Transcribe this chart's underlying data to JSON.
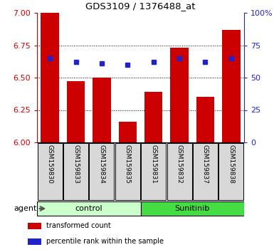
{
  "title": "GDS3109 / 1376488_at",
  "samples": [
    "GSM159830",
    "GSM159833",
    "GSM159834",
    "GSM159835",
    "GSM159831",
    "GSM159832",
    "GSM159837",
    "GSM159838"
  ],
  "red_values": [
    7.0,
    6.47,
    6.5,
    6.16,
    6.39,
    6.73,
    6.35,
    6.87
  ],
  "blue_values": [
    65,
    62,
    61,
    60,
    62,
    65,
    62,
    65
  ],
  "ylim_left": [
    6.0,
    7.0
  ],
  "ylim_right": [
    0,
    100
  ],
  "yticks_left": [
    6.0,
    6.25,
    6.5,
    6.75,
    7.0
  ],
  "yticks_right": [
    0,
    25,
    50,
    75,
    100
  ],
  "groups": [
    {
      "label": "control",
      "indices": [
        0,
        1,
        2,
        3
      ],
      "color": "#ccffcc"
    },
    {
      "label": "Sunitinib",
      "indices": [
        4,
        5,
        6,
        7
      ],
      "color": "#44dd44"
    }
  ],
  "group_label": "agent",
  "red_color": "#cc0000",
  "blue_color": "#2222cc",
  "bar_width": 0.7,
  "legend_red": "transformed count",
  "legend_blue": "percentile rank within the sample",
  "sample_bg": "#d8d8d8",
  "plot_bg": "#ffffff"
}
